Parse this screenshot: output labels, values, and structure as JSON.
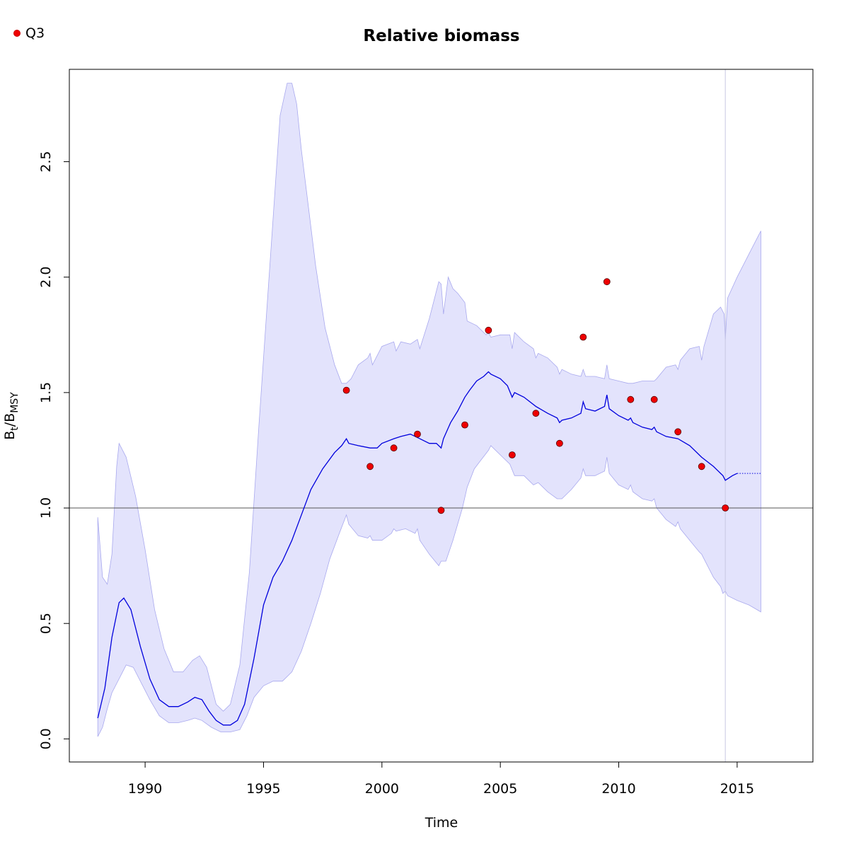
{
  "chart_data": {
    "type": "line",
    "title": "Relative biomass",
    "xlabel": "Time",
    "ylabel": {
      "main": "B",
      "sub1": "t",
      "sep": "/B",
      "sub2": "MSY"
    },
    "xlim": [
      1986.8,
      2018.2
    ],
    "ylim": [
      -0.1,
      2.9
    ],
    "x_ticks": [
      1990,
      1995,
      2000,
      2005,
      2010,
      2015
    ],
    "y_ticks": [
      0.0,
      0.5,
      1.0,
      1.5,
      2.0,
      2.5
    ],
    "x_tick_labels": [
      "1990",
      "1995",
      "2000",
      "2005",
      "2010",
      "2015"
    ],
    "y_tick_labels": [
      "0.0",
      "0.5",
      "1.0",
      "1.5",
      "2.0",
      "2.5"
    ],
    "reference_line_y": 1.0,
    "vertical_line_x": 2014.5,
    "legend": {
      "position": "top-left",
      "entries": [
        "Q3"
      ]
    },
    "colors": {
      "estimate": "#0000dd",
      "ci_fill": "#e3e3fc",
      "ci_edge": "#a9a9ee",
      "points": "#ee0000",
      "reference": "#555555",
      "vline": "#c8c8e2"
    },
    "estimate": {
      "name": "",
      "x": [
        1988.0,
        1988.3,
        1988.6,
        1988.9,
        1989.1,
        1989.4,
        1989.8,
        1990.2,
        1990.6,
        1991.0,
        1991.4,
        1991.8,
        1992.1,
        1992.4,
        1992.7,
        1993.0,
        1993.3,
        1993.6,
        1993.9,
        1994.2,
        1994.6,
        1995.0,
        1995.4,
        1995.8,
        1996.2,
        1996.6,
        1997.0,
        1997.5,
        1998.0,
        1998.3,
        1998.5,
        1998.6,
        1999.0,
        1999.5,
        1999.8,
        2000.0,
        2000.5,
        2000.8,
        2001.2,
        2001.6,
        2002.0,
        2002.3,
        2002.5,
        2002.6,
        2002.9,
        2003.2,
        2003.5,
        2003.7,
        2004.0,
        2004.3,
        2004.5,
        2004.6,
        2005.0,
        2005.3,
        2005.5,
        2005.6,
        2006.0,
        2006.5,
        2007.0,
        2007.4,
        2007.5,
        2007.6,
        2008.0,
        2008.4,
        2008.5,
        2008.6,
        2009.0,
        2009.4,
        2009.5,
        2009.6,
        2010.0,
        2010.4,
        2010.5,
        2010.6,
        2011.0,
        2011.4,
        2011.5,
        2011.6,
        2012.0,
        2012.5,
        2013.0,
        2013.5,
        2014.0,
        2014.4,
        2014.5,
        2014.8,
        2015.0
      ],
      "y": [
        0.09,
        0.22,
        0.44,
        0.59,
        0.61,
        0.56,
        0.4,
        0.26,
        0.17,
        0.14,
        0.14,
        0.16,
        0.18,
        0.17,
        0.12,
        0.08,
        0.06,
        0.06,
        0.08,
        0.15,
        0.35,
        0.58,
        0.7,
        0.77,
        0.86,
        0.97,
        1.08,
        1.17,
        1.24,
        1.27,
        1.3,
        1.28,
        1.27,
        1.26,
        1.26,
        1.28,
        1.3,
        1.31,
        1.32,
        1.3,
        1.28,
        1.28,
        1.26,
        1.3,
        1.37,
        1.42,
        1.48,
        1.51,
        1.55,
        1.57,
        1.59,
        1.58,
        1.56,
        1.53,
        1.48,
        1.5,
        1.48,
        1.44,
        1.41,
        1.39,
        1.37,
        1.38,
        1.39,
        1.41,
        1.46,
        1.43,
        1.42,
        1.44,
        1.49,
        1.43,
        1.4,
        1.38,
        1.39,
        1.37,
        1.35,
        1.34,
        1.35,
        1.33,
        1.31,
        1.3,
        1.27,
        1.22,
        1.18,
        1.14,
        1.12,
        1.14,
        1.15
      ]
    },
    "prediction": {
      "name": "",
      "x": [
        2015.0,
        2016.0
      ],
      "y": [
        1.15,
        1.15
      ]
    },
    "ci_upper": {
      "x": [
        1988.0,
        1988.2,
        1988.4,
        1988.6,
        1988.8,
        1988.9,
        1989.2,
        1989.6,
        1990.0,
        1990.4,
        1990.8,
        1991.2,
        1991.6,
        1992.0,
        1992.3,
        1992.6,
        1993.0,
        1993.3,
        1993.6,
        1994.0,
        1994.4,
        1994.8,
        1995.1,
        1995.4,
        1995.7,
        1996.0,
        1996.2,
        1996.4,
        1996.6,
        1996.9,
        1997.2,
        1997.6,
        1998.0,
        1998.3,
        1998.5,
        1998.7,
        1999.0,
        1999.4,
        1999.5,
        1999.6,
        2000.0,
        2000.5,
        2000.6,
        2000.8,
        2001.2,
        2001.5,
        2001.6,
        2002.0,
        2002.4,
        2002.5,
        2002.6,
        2002.8,
        2003.0,
        2003.2,
        2003.5,
        2003.6,
        2004.0,
        2004.4,
        2004.5,
        2004.6,
        2005.0,
        2005.4,
        2005.5,
        2005.6,
        2006.0,
        2006.4,
        2006.5,
        2006.6,
        2007.0,
        2007.4,
        2007.5,
        2007.6,
        2008.0,
        2008.4,
        2008.5,
        2008.6,
        2009.0,
        2009.4,
        2009.5,
        2009.6,
        2010.0,
        2010.4,
        2010.5,
        2010.6,
        2011.0,
        2011.4,
        2011.5,
        2011.6,
        2012.0,
        2012.4,
        2012.5,
        2012.6,
        2013.0,
        2013.4,
        2013.5,
        2013.6,
        2014.0,
        2014.3,
        2014.45,
        2014.5,
        2014.6,
        2015.0,
        2015.5,
        2016.0
      ],
      "y": [
        0.96,
        0.7,
        0.67,
        0.8,
        1.18,
        1.28,
        1.22,
        1.05,
        0.82,
        0.56,
        0.39,
        0.29,
        0.29,
        0.34,
        0.36,
        0.31,
        0.15,
        0.12,
        0.15,
        0.32,
        0.72,
        1.35,
        1.8,
        2.25,
        2.7,
        2.84,
        2.84,
        2.75,
        2.55,
        2.3,
        2.05,
        1.78,
        1.62,
        1.54,
        1.54,
        1.56,
        1.62,
        1.65,
        1.67,
        1.62,
        1.7,
        1.72,
        1.68,
        1.72,
        1.71,
        1.73,
        1.69,
        1.82,
        1.98,
        1.97,
        1.84,
        2.0,
        1.95,
        1.93,
        1.89,
        1.81,
        1.79,
        1.75,
        1.76,
        1.74,
        1.75,
        1.75,
        1.69,
        1.76,
        1.72,
        1.69,
        1.65,
        1.67,
        1.65,
        1.61,
        1.58,
        1.6,
        1.58,
        1.57,
        1.6,
        1.57,
        1.57,
        1.56,
        1.62,
        1.56,
        1.55,
        1.54,
        1.54,
        1.54,
        1.55,
        1.55,
        1.55,
        1.56,
        1.61,
        1.62,
        1.6,
        1.64,
        1.69,
        1.7,
        1.64,
        1.7,
        1.84,
        1.87,
        1.84,
        1.73,
        1.91,
        2.0,
        2.1,
        2.2
      ]
    },
    "ci_lower": {
      "x": [
        1988.0,
        1988.2,
        1988.4,
        1988.6,
        1988.9,
        1989.2,
        1989.5,
        1989.8,
        1990.2,
        1990.6,
        1991.0,
        1991.4,
        1991.8,
        1992.1,
        1992.4,
        1992.8,
        1993.2,
        1993.6,
        1994.0,
        1994.3,
        1994.6,
        1995.0,
        1995.4,
        1995.8,
        1996.2,
        1996.6,
        1997.0,
        1997.4,
        1997.8,
        1998.2,
        1998.5,
        1998.6,
        1999.0,
        1999.4,
        1999.5,
        1999.6,
        2000.0,
        2000.4,
        2000.5,
        2000.6,
        2001.0,
        2001.4,
        2001.5,
        2001.6,
        2002.0,
        2002.4,
        2002.5,
        2002.7,
        2003.0,
        2003.4,
        2003.6,
        2003.9,
        2004.2,
        2004.5,
        2004.6,
        2005.0,
        2005.4,
        2005.6,
        2006.0,
        2006.4,
        2006.6,
        2007.0,
        2007.4,
        2007.6,
        2008.0,
        2008.4,
        2008.5,
        2008.6,
        2009.0,
        2009.4,
        2009.5,
        2009.6,
        2010.0,
        2010.4,
        2010.5,
        2010.6,
        2011.0,
        2011.4,
        2011.5,
        2011.6,
        2012.0,
        2012.4,
        2012.5,
        2012.6,
        2013.0,
        2013.4,
        2013.5,
        2013.6,
        2014.0,
        2014.3,
        2014.4,
        2014.5,
        2014.6,
        2015.0,
        2015.5,
        2016.0
      ],
      "y": [
        0.01,
        0.05,
        0.13,
        0.2,
        0.26,
        0.32,
        0.31,
        0.25,
        0.17,
        0.1,
        0.07,
        0.07,
        0.08,
        0.09,
        0.08,
        0.05,
        0.03,
        0.03,
        0.04,
        0.1,
        0.18,
        0.23,
        0.25,
        0.25,
        0.29,
        0.38,
        0.5,
        0.63,
        0.78,
        0.89,
        0.97,
        0.93,
        0.88,
        0.87,
        0.88,
        0.86,
        0.86,
        0.89,
        0.91,
        0.9,
        0.91,
        0.89,
        0.91,
        0.86,
        0.8,
        0.75,
        0.77,
        0.77,
        0.86,
        1.0,
        1.09,
        1.17,
        1.21,
        1.25,
        1.27,
        1.23,
        1.19,
        1.14,
        1.14,
        1.1,
        1.11,
        1.07,
        1.04,
        1.04,
        1.08,
        1.13,
        1.17,
        1.14,
        1.14,
        1.16,
        1.22,
        1.15,
        1.1,
        1.08,
        1.1,
        1.07,
        1.04,
        1.03,
        1.04,
        1.0,
        0.95,
        0.92,
        0.94,
        0.91,
        0.86,
        0.81,
        0.8,
        0.78,
        0.7,
        0.66,
        0.63,
        0.64,
        0.62,
        0.6,
        0.58,
        0.55
      ]
    },
    "points": {
      "name": "Q3",
      "x": [
        1998.5,
        1999.5,
        2000.5,
        2001.5,
        2002.5,
        2003.5,
        2004.5,
        2005.5,
        2006.5,
        2007.5,
        2008.5,
        2009.5,
        2010.5,
        2011.5,
        2012.5,
        2013.5,
        2014.5
      ],
      "y": [
        1.51,
        1.18,
        1.26,
        1.32,
        0.99,
        1.36,
        1.77,
        1.23,
        1.41,
        1.28,
        1.74,
        1.98,
        1.47,
        1.47,
        1.33,
        1.18,
        1.0
      ]
    }
  }
}
